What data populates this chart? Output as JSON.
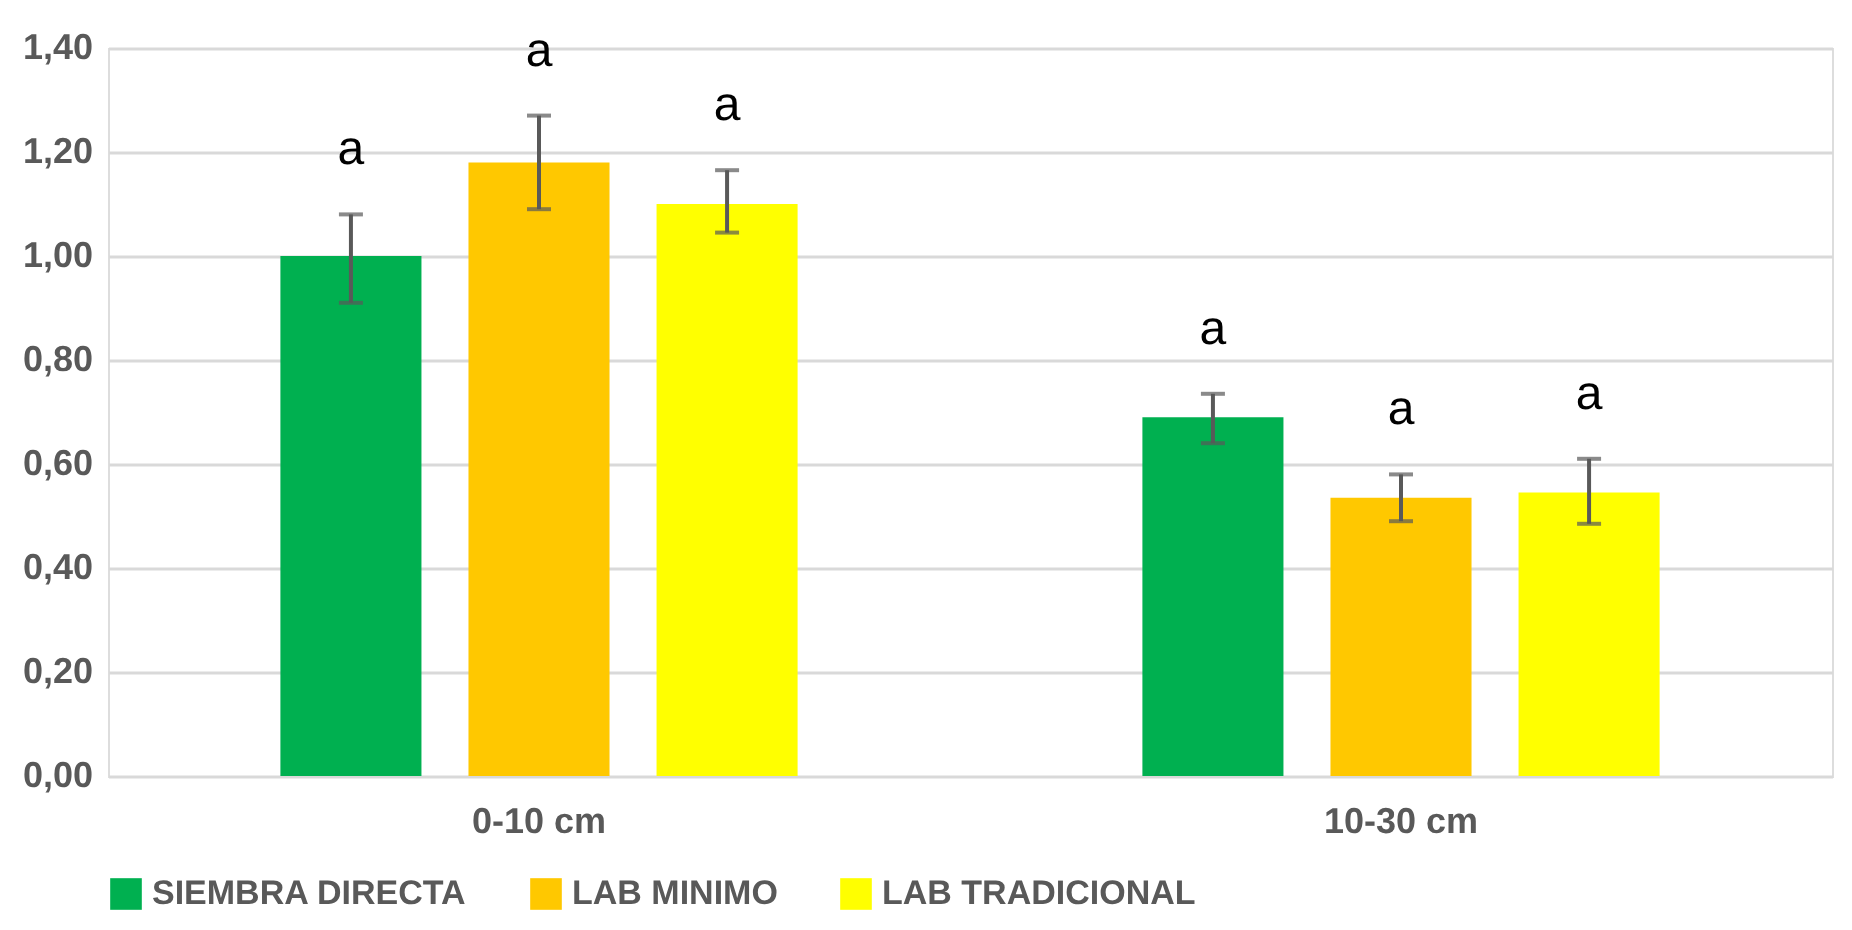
{
  "chart_data": {
    "type": "bar",
    "categories": [
      "0-10 cm",
      "10-30 cm"
    ],
    "series": [
      {
        "name": "SIEMBRA DIRECTA",
        "color": "#00b050",
        "values": [
          1.0,
          0.69
        ],
        "errors": [
          [
            0.91,
            1.08
          ],
          [
            0.64,
            0.735
          ]
        ]
      },
      {
        "name": "LAB MINIMO",
        "color": "#ffc800",
        "values": [
          1.18,
          0.535
        ],
        "errors": [
          [
            1.09,
            1.27
          ],
          [
            0.49,
            0.58
          ]
        ]
      },
      {
        "name": "LAB TRADICIONAL",
        "color": "#ffff00",
        "values": [
          1.1,
          0.545
        ],
        "errors": [
          [
            1.045,
            1.165
          ],
          [
            0.485,
            0.61
          ]
        ]
      }
    ],
    "ylim": [
      0,
      1.4
    ],
    "yticks": [
      {
        "value": 0,
        "label": "0,00"
      },
      {
        "value": 0.2,
        "label": "0,20"
      },
      {
        "value": 0.4,
        "label": "0,40"
      },
      {
        "value": 0.6,
        "label": "0,60"
      },
      {
        "value": 0.8,
        "label": "0,80"
      },
      {
        "value": 1.0,
        "label": "1,00"
      },
      {
        "value": 1.2,
        "label": "1,20"
      },
      {
        "value": 1.4,
        "label": "1,40"
      }
    ],
    "annotations": [
      "a",
      "a",
      "a",
      "a",
      "a",
      "a"
    ],
    "grid": "y",
    "legend": "bottom"
  }
}
